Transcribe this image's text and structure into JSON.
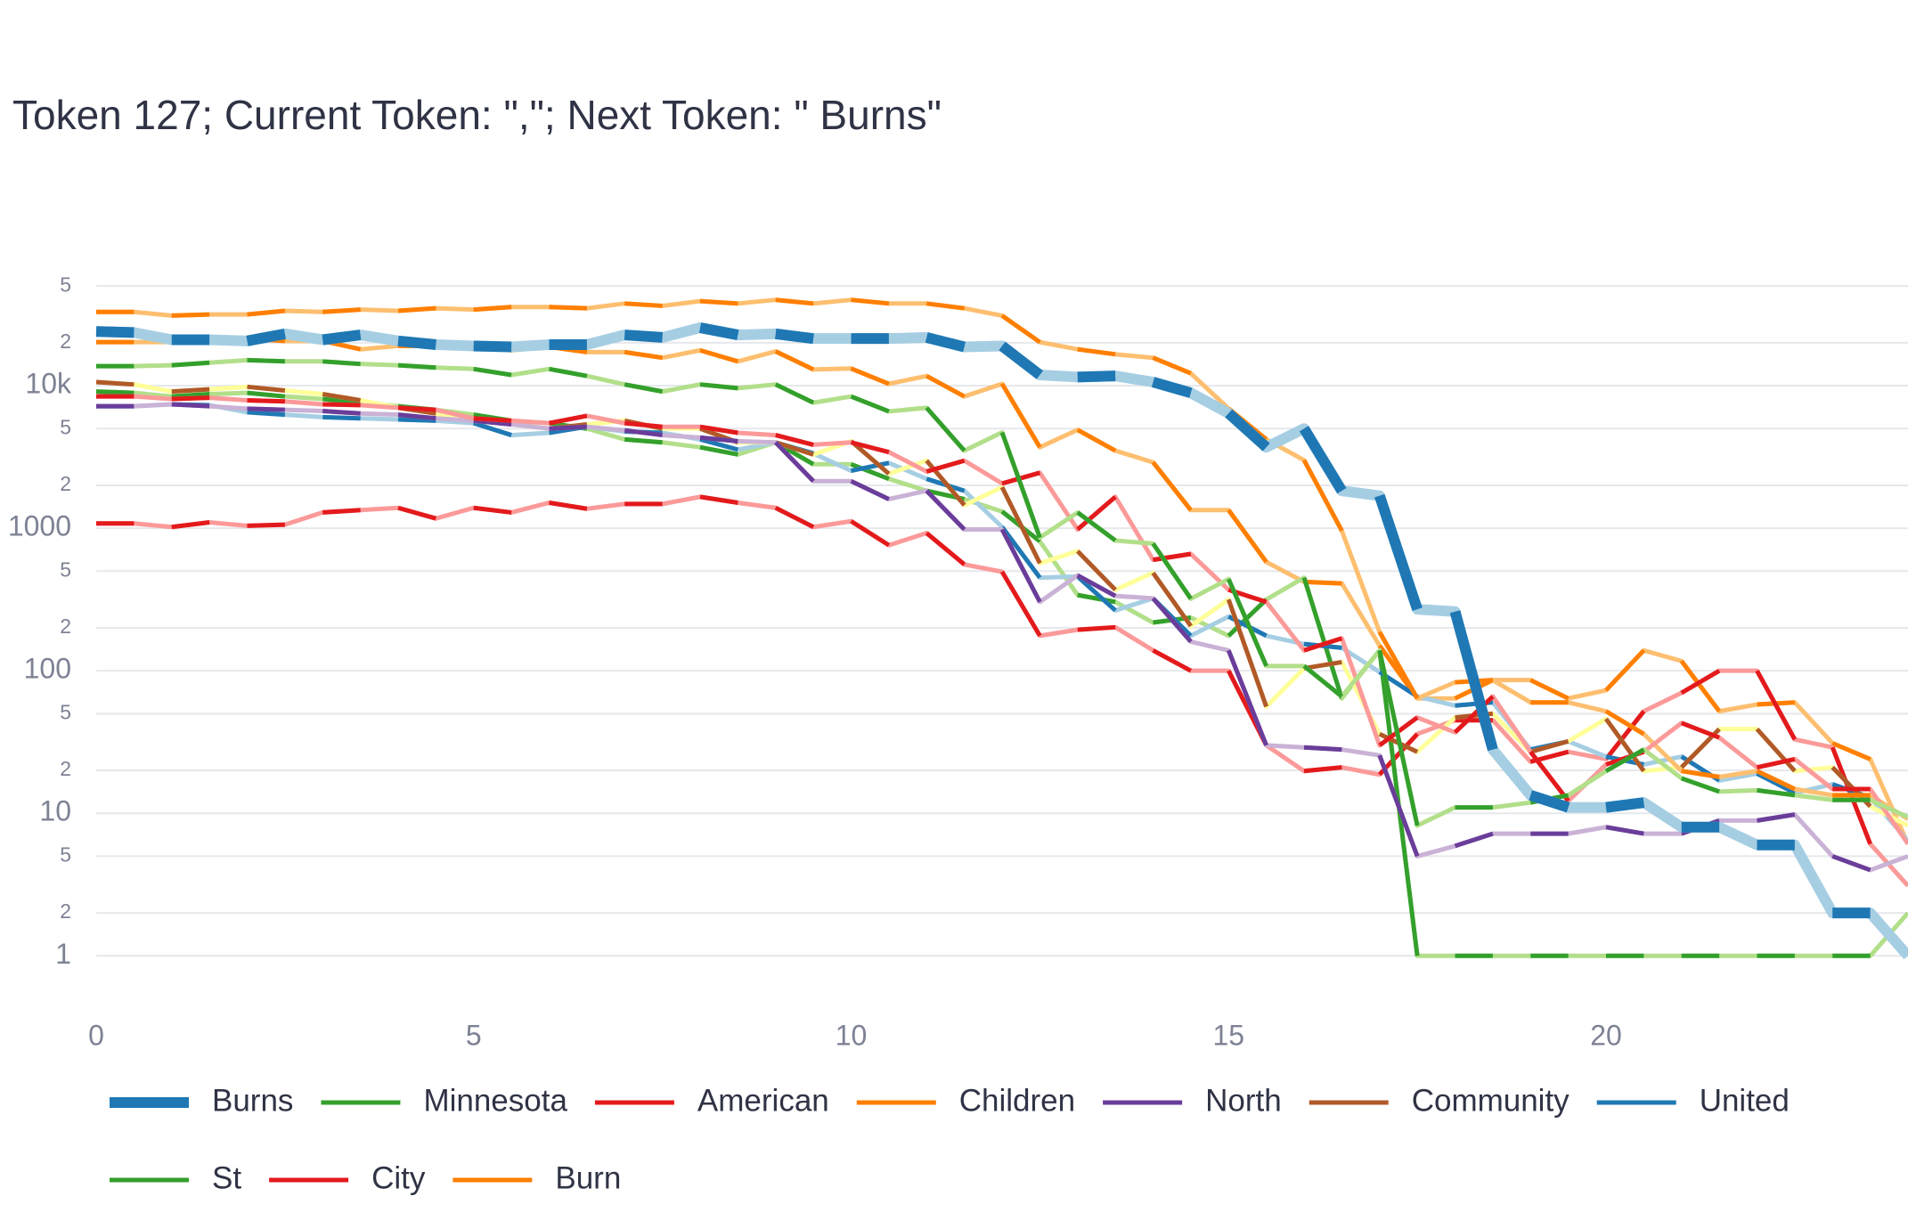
{
  "chart_data": {
    "type": "line",
    "title": "Token 127; Current Token: \",\"; Next Token: \" Burns\"",
    "x": [
      0,
      0.5,
      1,
      1.5,
      2,
      2.5,
      3,
      3.5,
      4,
      4.5,
      5,
      5.5,
      6,
      6.5,
      7,
      7.5,
      8,
      8.5,
      9,
      9.5,
      10,
      10.5,
      11,
      11.5,
      12,
      12.5,
      13,
      13.5,
      14,
      14.5,
      15,
      15.5,
      16,
      16.5,
      17,
      17.5,
      18,
      18.5,
      19,
      19.5,
      20,
      20.5,
      21,
      21.5,
      22,
      22.5,
      23,
      23.5,
      24
    ],
    "xlim": [
      0,
      24
    ],
    "xticks": [
      0,
      5,
      10,
      15,
      20
    ],
    "y_scale": "log",
    "ylim": [
      0.4,
      100000
    ],
    "yticks": [
      1,
      2,
      5,
      10,
      {
        "value": 20,
        "label": "2"
      },
      {
        "value": 50,
        "label": "5"
      },
      100,
      {
        "value": 200,
        "label": "2"
      },
      {
        "value": 500,
        "label": "5"
      },
      1000,
      {
        "value": 2000,
        "label": "2"
      },
      {
        "value": 5000,
        "label": "5"
      },
      {
        "value": 10000,
        "label": "10k"
      },
      {
        "value": 20000,
        "label": "2"
      },
      {
        "value": 50000,
        "label": "5"
      }
    ],
    "grid": true,
    "series": [
      {
        "name": "Burns",
        "color": "#1f78b4",
        "color_alt": "#a6cee3",
        "width": 12,
        "values": [
          24000,
          23600,
          21000,
          21000,
          20600,
          23100,
          21000,
          22700,
          20600,
          19400,
          19000,
          18700,
          19400,
          19400,
          22700,
          21800,
          25500,
          22700,
          23100,
          21400,
          21400,
          21400,
          21800,
          18700,
          19000,
          11900,
          11500,
          11700,
          10600,
          8900,
          6400,
          3700,
          5000,
          1830,
          1690,
          270,
          260,
          28,
          13.4,
          11,
          11,
          11.9,
          8,
          8,
          6,
          6,
          2,
          2,
          1
        ]
      },
      {
        "name": "Minnesota",
        "color": "#33a02c",
        "color_alt": "#b2df8a",
        "width": 5,
        "values": [
          13700,
          13700,
          13900,
          14500,
          15100,
          14800,
          14800,
          14200,
          13900,
          13400,
          13100,
          11900,
          13100,
          11700,
          10200,
          9100,
          10200,
          9600,
          10200,
          7600,
          8400,
          6600,
          7000,
          3500,
          4700,
          860,
          1290,
          820,
          780,
          320,
          440,
          108,
          108,
          66,
          139,
          8.2,
          11,
          11,
          11.9,
          13.4,
          19.8,
          28,
          17.6,
          14.2,
          14.5,
          13.4,
          12.4,
          12.4,
          9.4
        ]
      },
      {
        "name": "American",
        "color": "#e31a1c",
        "color_alt": "#fb9a99",
        "width": 5,
        "values": [
          8400,
          8400,
          8070,
          8230,
          7900,
          7750,
          7400,
          7300,
          7000,
          6770,
          5900,
          5680,
          5460,
          6140,
          5460,
          5150,
          5150,
          4670,
          4500,
          3850,
          4000,
          3420,
          2500,
          2980,
          2060,
          2450,
          980,
          1660,
          600,
          660,
          370,
          304,
          139,
          169,
          30,
          47,
          37,
          66,
          27,
          12.2,
          22,
          27,
          43,
          34,
          21,
          24,
          14.8,
          14.8,
          6.1
        ]
      },
      {
        "name": "Children",
        "color": "#ff7f00",
        "color_alt": "#fdbf6f",
        "width": 5,
        "values": [
          32900,
          32900,
          31000,
          31600,
          31600,
          33500,
          32900,
          34200,
          33500,
          34900,
          34200,
          35600,
          35600,
          34900,
          37700,
          36300,
          39200,
          37700,
          40000,
          37700,
          40000,
          37700,
          37700,
          34900,
          31000,
          20200,
          18000,
          16600,
          15700,
          12200,
          6900,
          4200,
          3000,
          960,
          187,
          64,
          83,
          86,
          60,
          60,
          52,
          36,
          19.8,
          18,
          19.8,
          14.8,
          13.4,
          13.4,
          9.1
        ]
      },
      {
        "name": "North",
        "color": "#6a3d9a",
        "color_alt": "#cab2d6",
        "width": 5,
        "values": [
          7180,
          7180,
          7400,
          7180,
          6900,
          6770,
          6640,
          6380,
          6260,
          5900,
          5680,
          5350,
          5000,
          5150,
          4860,
          4500,
          4320,
          4080,
          4000,
          2140,
          2140,
          1600,
          1830,
          980,
          980,
          304,
          467,
          335,
          322,
          160,
          139,
          30,
          29,
          28,
          25.5,
          5,
          5.9,
          7.2,
          7.2,
          7.2,
          8,
          7.2,
          7.2,
          8.9,
          8.9,
          9.8,
          5,
          4,
          5
        ]
      },
      {
        "name": "Community",
        "color": "#b15928",
        "color_alt": "#ffff99",
        "width": 5,
        "values": [
          10600,
          10200,
          9100,
          9440,
          9820,
          9250,
          8730,
          7900,
          7000,
          6380,
          5680,
          5350,
          5000,
          5350,
          5680,
          5000,
          5000,
          4000,
          4000,
          3290,
          4080,
          2410,
          2980,
          1450,
          1940,
          568,
          690,
          370,
          486,
          206,
          316,
          56,
          104,
          115,
          36,
          27,
          47,
          50,
          27,
          32,
          46,
          19.8,
          21,
          39,
          39,
          19.8,
          21,
          11.2,
          8.2
        ]
      },
      {
        "name": "United",
        "color": "#1f78b4",
        "color_alt": "#a6cee3",
        "width": 5,
        "values": [
          7180,
          7180,
          7400,
          7300,
          6510,
          6260,
          6020,
          5900,
          5790,
          5680,
          5460,
          4500,
          4670,
          5150,
          4770,
          4670,
          4200,
          3560,
          4000,
          3350,
          2530,
          2870,
          2220,
          1830,
          1020,
          450,
          458,
          265,
          322,
          176,
          240,
          176,
          154,
          145,
          98,
          66,
          57,
          60,
          28,
          32,
          25,
          22,
          25,
          17,
          19,
          13.9,
          16,
          12.9,
          6.4
        ]
      },
      {
        "name": "St",
        "color": "#33a02c",
        "color_alt": "#b2df8a",
        "width": 5,
        "values": [
          9100,
          8900,
          8400,
          8730,
          8900,
          8400,
          8070,
          7600,
          7180,
          6770,
          6260,
          5680,
          5460,
          5000,
          4200,
          4000,
          3700,
          3290,
          4000,
          2810,
          2810,
          2220,
          1830,
          1600,
          1310,
          810,
          340,
          304,
          218,
          236,
          176,
          316,
          450,
          64,
          139,
          1,
          1,
          1,
          1,
          1,
          1,
          1,
          1,
          1,
          1,
          1,
          1,
          1,
          2
        ]
      },
      {
        "name": "City",
        "color": "#e31a1c",
        "color_alt": "#fb9a99",
        "width": 5,
        "values": [
          1080,
          1080,
          1020,
          1100,
          1040,
          1060,
          1290,
          1340,
          1390,
          1170,
          1390,
          1290,
          1510,
          1370,
          1480,
          1480,
          1660,
          1510,
          1390,
          1020,
          1120,
          760,
          925,
          557,
          495,
          176,
          194,
          202,
          139,
          100,
          100,
          30,
          19.8,
          21,
          18.7,
          36,
          45,
          45,
          23,
          27,
          24,
          52,
          70,
          100,
          100,
          33,
          29,
          6.1,
          3.1
        ]
      },
      {
        "name": "Burn",
        "color": "#ff7f00",
        "color_alt": "#fdbf6f",
        "width": 5,
        "values": [
          20200,
          20200,
          20200,
          20600,
          21400,
          20600,
          20600,
          18000,
          19000,
          19000,
          19400,
          17700,
          18700,
          17200,
          17200,
          15700,
          17700,
          14800,
          17400,
          13000,
          13200,
          10300,
          11700,
          8400,
          10300,
          3700,
          4900,
          3500,
          2900,
          1340,
          1340,
          580,
          420,
          410,
          150,
          64,
          64,
          86,
          86,
          64,
          73,
          139,
          117,
          52,
          58,
          60,
          31,
          24,
          6.1
        ]
      }
    ]
  }
}
